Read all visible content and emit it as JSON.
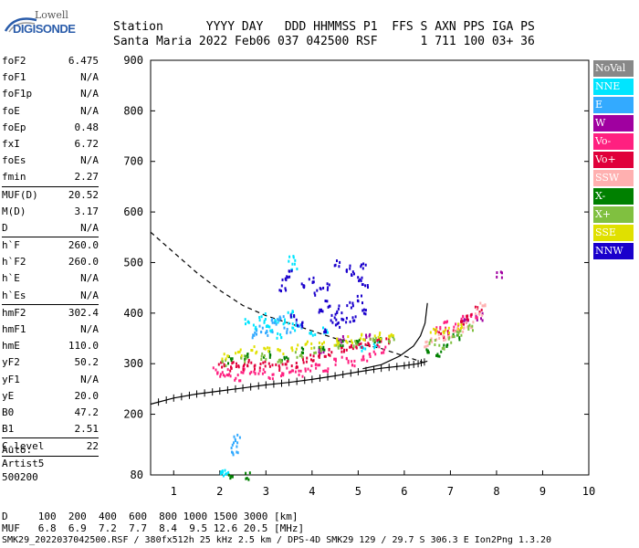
{
  "logo": {
    "line1": "Lowell",
    "line2": "DIGISONDE"
  },
  "header": {
    "line1": "Station      YYYY DAY   DDD HHMMSS P1  FFS S AXN PPS IGA PS",
    "line2": "Santa Maria 2022 Feb06 037 042500 RSF      1 711 100 03+ 36"
  },
  "params": {
    "group1": [
      [
        "foF2",
        "6.475"
      ],
      [
        "foF1",
        "N/A"
      ],
      [
        "foF1p",
        "N/A"
      ],
      [
        "foE",
        "N/A"
      ],
      [
        "foEp",
        "0.48"
      ],
      [
        "fxI",
        "6.72"
      ],
      [
        "foEs",
        "N/A"
      ],
      [
        "fmin",
        "2.27"
      ]
    ],
    "group2": [
      [
        "MUF(D)",
        "20.52"
      ],
      [
        "M(D)",
        "3.17"
      ],
      [
        "D",
        "N/A"
      ]
    ],
    "group3": [
      [
        "h`F",
        "260.0"
      ],
      [
        "h`F2",
        "260.0"
      ],
      [
        "h`E",
        "N/A"
      ],
      [
        "h`Es",
        "N/A"
      ]
    ],
    "group4": [
      [
        "hmF2",
        "302.4"
      ],
      [
        "hmF1",
        "N/A"
      ],
      [
        "hmE",
        "110.0"
      ],
      [
        "yF2",
        "50.2"
      ],
      [
        "yF1",
        "N/A"
      ],
      [
        "yE",
        "20.0"
      ],
      [
        "B0",
        "47.2"
      ],
      [
        "B1",
        "2.51"
      ]
    ],
    "group5": [
      [
        "C-level",
        "22"
      ]
    ]
  },
  "auto": {
    "line1": "Auto:",
    "line2": "Artist5",
    "line3": "500200"
  },
  "footer": {
    "d_row": "D     100  200  400  600  800 1000 1500 3000 [km]",
    "muf_row": "MUF   6.8  6.9  7.2  7.7  8.4  9.5 12.6 20.5 [MHz]",
    "info": "SMK29_2022037042500.RSF / 380fx512h 25 kHz 2.5 km / DPS-4D SMK29 129 / 29.7 S 306.3 E Ion2Png 1.3.20"
  },
  "legend": [
    {
      "label": "NoVal",
      "color": "#888888"
    },
    {
      "label": "NNE",
      "color": "#00e5ff"
    },
    {
      "label": "E",
      "color": "#33aaff"
    },
    {
      "label": "W",
      "color": "#a000a0"
    },
    {
      "label": "Vo-",
      "color": "#ff2080"
    },
    {
      "label": "Vo+",
      "color": "#e0003a"
    },
    {
      "label": "SSW",
      "color": "#ffb0b0"
    },
    {
      "label": "X-",
      "color": "#008000"
    },
    {
      "label": "X+",
      "color": "#80c040"
    },
    {
      "label": "SSE",
      "color": "#e0e000"
    },
    {
      "label": "NNW",
      "color": "#1a00cc"
    }
  ],
  "chart_data": {
    "type": "scatter",
    "title": "",
    "xlabel": "",
    "ylabel": "",
    "xlim": [
      0.5,
      10
    ],
    "ylim": [
      80,
      900
    ],
    "x_ticks": [
      "1",
      "2",
      "3",
      "4",
      "5",
      "6",
      "7",
      "8",
      "9",
      "10"
    ],
    "y_ticks": [
      "80",
      "200",
      "300",
      "400",
      "500",
      "600",
      "700",
      "800",
      "900"
    ],
    "grid": false,
    "legend_position": "right",
    "clusters": [
      {
        "name": "NNE",
        "points": [
          [
            2.6,
            385
          ],
          [
            2.75,
            375
          ],
          [
            2.9,
            395
          ],
          [
            3.0,
            380
          ],
          [
            3.1,
            370
          ],
          [
            3.25,
            390
          ],
          [
            3.4,
            385
          ],
          [
            3.5,
            400
          ],
          [
            3.6,
            375
          ],
          [
            3.3,
            355
          ],
          [
            3.55,
            510
          ],
          [
            3.6,
            495
          ],
          [
            4.0,
            365
          ],
          [
            4.3,
            370
          ],
          [
            5.1,
            330
          ],
          [
            5.4,
            340
          ],
          [
            2.1,
            85
          ],
          [
            2.0,
            82
          ]
        ]
      },
      {
        "name": "E",
        "points": [
          [
            2.7,
            360
          ],
          [
            2.85,
            370
          ],
          [
            3.05,
            365
          ],
          [
            3.15,
            385
          ],
          [
            3.3,
            395
          ],
          [
            3.45,
            370
          ],
          [
            3.7,
            380
          ],
          [
            2.3,
            140
          ],
          [
            2.35,
            155
          ],
          [
            2.3,
            125
          ]
        ]
      },
      {
        "name": "NNW",
        "points": [
          [
            3.4,
            470
          ],
          [
            3.5,
            480
          ],
          [
            3.35,
            450
          ],
          [
            3.8,
            460
          ],
          [
            4.0,
            470
          ],
          [
            4.1,
            445
          ],
          [
            4.3,
            455
          ],
          [
            4.55,
            500
          ],
          [
            4.8,
            490
          ],
          [
            4.9,
            480
          ],
          [
            5.0,
            470
          ],
          [
            5.1,
            495
          ],
          [
            5.15,
            460
          ],
          [
            3.6,
            395
          ],
          [
            3.7,
            380
          ],
          [
            4.2,
            405
          ],
          [
            4.35,
            420
          ],
          [
            4.45,
            395
          ],
          [
            4.6,
            410
          ],
          [
            4.7,
            390
          ],
          [
            4.8,
            420
          ],
          [
            4.85,
            390
          ],
          [
            5.0,
            430
          ],
          [
            5.1,
            405
          ],
          [
            4.5,
            380
          ],
          [
            4.3,
            370
          ]
        ]
      },
      {
        "name": "W",
        "points": [
          [
            4.2,
            330
          ],
          [
            4.6,
            350
          ],
          [
            5.2,
            355
          ],
          [
            7.3,
            385
          ],
          [
            7.6,
            395
          ],
          [
            8.05,
            478
          ]
        ]
      },
      {
        "name": "Vo-",
        "points": [
          [
            1.9,
            290
          ],
          [
            2.05,
            280
          ],
          [
            2.2,
            285
          ],
          [
            2.35,
            275
          ],
          [
            2.5,
            290
          ],
          [
            2.7,
            280
          ],
          [
            2.9,
            285
          ],
          [
            3.1,
            278
          ],
          [
            3.3,
            283
          ],
          [
            3.5,
            290
          ],
          [
            3.7,
            282
          ],
          [
            3.9,
            295
          ],
          [
            4.1,
            300
          ],
          [
            4.3,
            292
          ],
          [
            4.5,
            305
          ],
          [
            4.7,
            310
          ],
          [
            4.9,
            302
          ],
          [
            5.1,
            315
          ],
          [
            5.3,
            320
          ],
          [
            5.5,
            330
          ],
          [
            6.7,
            370
          ],
          [
            6.9,
            380
          ],
          [
            7.1,
            375
          ],
          [
            7.3,
            390
          ],
          [
            7.5,
            400
          ]
        ]
      },
      {
        "name": "Vo+",
        "points": [
          [
            2.0,
            300
          ],
          [
            2.15,
            295
          ],
          [
            2.3,
            300
          ],
          [
            2.45,
            295
          ],
          [
            2.6,
            305
          ],
          [
            2.8,
            298
          ],
          [
            3.0,
            302
          ],
          [
            3.2,
            295
          ],
          [
            3.4,
            305
          ],
          [
            3.6,
            300
          ],
          [
            3.8,
            310
          ],
          [
            4.0,
            315
          ],
          [
            4.2,
            320
          ],
          [
            4.4,
            325
          ],
          [
            4.6,
            330
          ],
          [
            4.8,
            335
          ],
          [
            5.0,
            340
          ],
          [
            5.2,
            345
          ],
          [
            5.4,
            345
          ],
          [
            5.6,
            350
          ],
          [
            6.8,
            360
          ],
          [
            7.0,
            365
          ],
          [
            7.2,
            380
          ],
          [
            7.4,
            395
          ],
          [
            7.6,
            410
          ]
        ]
      },
      {
        "name": "SSW",
        "points": [
          [
            6.5,
            340
          ],
          [
            6.6,
            350
          ],
          [
            6.8,
            355
          ],
          [
            7.0,
            360
          ],
          [
            7.2,
            370
          ],
          [
            7.4,
            380
          ],
          [
            7.6,
            405
          ],
          [
            7.7,
            420
          ]
        ]
      },
      {
        "name": "X-",
        "points": [
          [
            2.2,
            310
          ],
          [
            2.6,
            318
          ],
          [
            3.0,
            322
          ],
          [
            3.4,
            315
          ],
          [
            3.8,
            328
          ],
          [
            4.2,
            335
          ],
          [
            4.6,
            340
          ],
          [
            5.0,
            345
          ],
          [
            5.4,
            350
          ],
          [
            6.5,
            330
          ],
          [
            6.7,
            320
          ],
          [
            6.9,
            340
          ],
          [
            7.1,
            355
          ],
          [
            2.2,
            82
          ],
          [
            2.6,
            80
          ]
        ]
      },
      {
        "name": "X+",
        "points": [
          [
            2.1,
            305
          ],
          [
            2.5,
            312
          ],
          [
            2.9,
            318
          ],
          [
            3.3,
            310
          ],
          [
            3.7,
            322
          ],
          [
            4.1,
            330
          ],
          [
            4.5,
            338
          ],
          [
            4.9,
            342
          ],
          [
            5.3,
            348
          ],
          [
            5.7,
            352
          ],
          [
            6.6,
            345
          ],
          [
            6.8,
            335
          ],
          [
            7.0,
            350
          ],
          [
            7.2,
            365
          ],
          [
            7.4,
            375
          ]
        ]
      },
      {
        "name": "SSE",
        "points": [
          [
            2.1,
            318
          ],
          [
            2.4,
            325
          ],
          [
            2.7,
            330
          ],
          [
            3.0,
            328
          ],
          [
            3.3,
            325
          ],
          [
            3.6,
            335
          ],
          [
            3.9,
            340
          ],
          [
            4.2,
            338
          ],
          [
            4.5,
            345
          ],
          [
            4.8,
            350
          ],
          [
            5.1,
            355
          ],
          [
            5.4,
            358
          ],
          [
            5.7,
            355
          ],
          [
            6.6,
            365
          ],
          [
            6.9,
            370
          ],
          [
            7.2,
            378
          ]
        ]
      }
    ],
    "dashed_curve": [
      [
        0.5,
        560
      ],
      [
        1.0,
        520
      ],
      [
        1.5,
        480
      ],
      [
        2.0,
        445
      ],
      [
        2.5,
        415
      ],
      [
        3.0,
        395
      ],
      [
        3.5,
        380
      ],
      [
        4.0,
        365
      ],
      [
        4.5,
        350
      ],
      [
        5.0,
        340
      ],
      [
        5.5,
        330
      ],
      [
        6.0,
        315
      ],
      [
        6.5,
        300
      ]
    ],
    "profile_curve": [
      [
        0.5,
        220
      ],
      [
        1.0,
        232
      ],
      [
        1.5,
        240
      ],
      [
        2.0,
        246
      ],
      [
        2.5,
        252
      ],
      [
        3.0,
        258
      ],
      [
        3.5,
        263
      ],
      [
        4.0,
        269
      ],
      [
        4.5,
        276
      ],
      [
        5.0,
        284
      ],
      [
        5.5,
        291
      ],
      [
        6.0,
        296
      ],
      [
        6.3,
        300
      ],
      [
        6.5,
        305
      ]
    ],
    "trace_curve": [
      [
        5.1,
        290
      ],
      [
        5.5,
        298
      ],
      [
        5.9,
        315
      ],
      [
        6.2,
        335
      ],
      [
        6.35,
        355
      ],
      [
        6.45,
        380
      ],
      [
        6.5,
        420
      ]
    ]
  }
}
